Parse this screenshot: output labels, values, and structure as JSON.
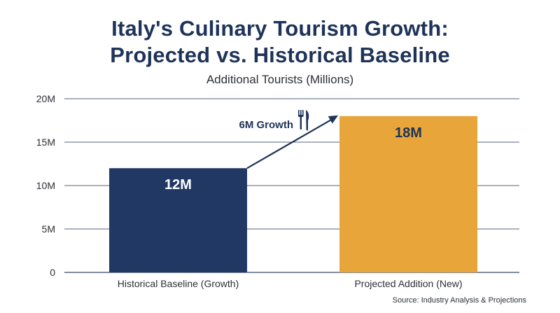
{
  "chart_data": {
    "type": "bar",
    "title": "Italy's Culinary Tourism Growth:",
    "title_line2": "Projected vs. Historical Baseline",
    "subtitle": "Additional Tourists (Millions)",
    "categories": [
      "Historical Baseline (Growth)",
      "Projected Addition (New)"
    ],
    "values": [
      12,
      18
    ],
    "data_labels": [
      "12M",
      "18M"
    ],
    "bar_colors": [
      "#223864",
      "#e8a53a"
    ],
    "data_label_colors": [
      "#ffffff",
      "#1e3358"
    ],
    "ylim": [
      0,
      20
    ],
    "y_ticks": [
      0,
      5,
      10,
      15,
      20
    ],
    "y_tick_labels": [
      "0",
      "5M",
      "10M",
      "15M",
      "20M"
    ],
    "grid": true,
    "annotation": {
      "text": "6M Growth",
      "icon": "fork-knife-icon",
      "from_value": 12,
      "to_value": 18,
      "color": "#1e3358"
    },
    "source": "Source: Industry Analysis & Projections"
  }
}
